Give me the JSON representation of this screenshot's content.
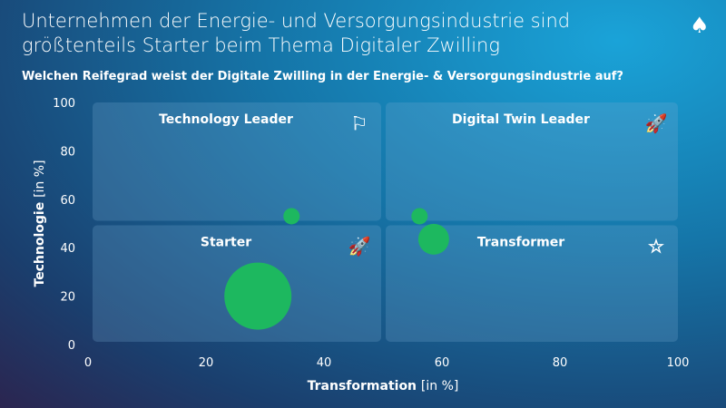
{
  "header": {
    "title_line1": "Unternehmen der Energie- und Versorgungsindustrie sind",
    "title_line2": "größtenteils Starter beim Thema Digitaler Zwilling",
    "subtitle": "Welchen Reifegrad weist der Digitale Zwilling in der Energie- & Versorgungsindustrie auf?"
  },
  "chart_data": {
    "type": "scatter",
    "title": "Welchen Reifegrad weist der Digitale Zwilling in der Energie- & Versorgungsindustrie auf?",
    "xlabel": "Transformation",
    "xlabel_unit": "[in %]",
    "ylabel": "Technologie",
    "ylabel_unit": "[in %]",
    "xlim": [
      0,
      100
    ],
    "ylim": [
      0,
      100
    ],
    "xticks": [
      0,
      20,
      40,
      60,
      80,
      100
    ],
    "yticks": [
      0,
      20,
      40,
      60,
      80,
      100
    ],
    "quadrants": [
      {
        "label": "Technology Leader",
        "icon": "presenter-flag-icon"
      },
      {
        "label": "Digital Twin Leader",
        "icon": "rocket-flying-icon"
      },
      {
        "label": "Starter",
        "icon": "rocket-launch-icon"
      },
      {
        "label": "Transformer",
        "icon": "person-star-icon"
      }
    ],
    "points": [
      {
        "x": 28.8,
        "y": 20,
        "size": 37
      },
      {
        "x": 34.5,
        "y": 53,
        "size": 9
      },
      {
        "x": 56.2,
        "y": 53,
        "size": 9
      },
      {
        "x": 58.6,
        "y": 43.5,
        "size": 17
      }
    ],
    "color": "#1db85f"
  }
}
